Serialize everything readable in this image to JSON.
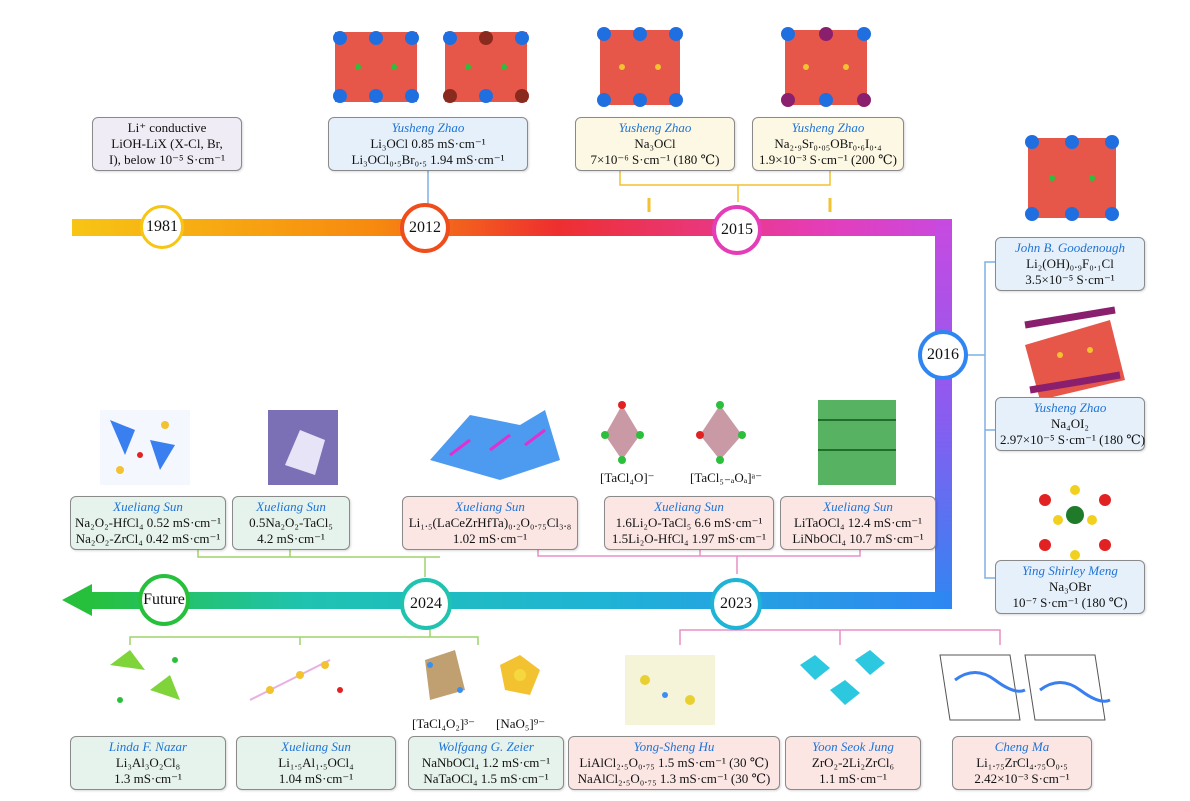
{
  "years": {
    "y1981": "1981",
    "y2012": "2012",
    "y2015": "2015",
    "y2016": "2016",
    "y2023": "2023",
    "y2024": "2024",
    "future": "Future"
  },
  "cards": {
    "c1981": {
      "l1": "Li⁺ conductive",
      "l2": "LiOH-LiX (X-Cl, Br,",
      "l3": "I), below 10⁻⁵ S·cm⁻¹"
    },
    "c2012": {
      "author": "Yusheng Zhao",
      "l1": "Li₃OCl 0.85 mS·cm⁻¹",
      "l2": "Li₃OCl₀.₅Br₀.₅ 1.94 mS·cm⁻¹"
    },
    "c2015a": {
      "author": "Yusheng Zhao",
      "l1": "Na₃OCl",
      "l2": "7×10⁻⁶ S·cm⁻¹ (180 ℃)"
    },
    "c2015b": {
      "author": "Yusheng Zhao",
      "l1": "Na₂.₉Sr₀.₀₅OBr₀.₆I₀.₄",
      "l2": "1.9×10⁻³ S·cm⁻¹ (200 ℃)"
    },
    "c2016a": {
      "author": "John B. Goodenough",
      "l1": "Li₂(OH)₀.₉F₀.₁Cl",
      "l2": "3.5×10⁻⁵ S·cm⁻¹"
    },
    "c2016b": {
      "author": "Yusheng Zhao",
      "l1": "Na₄OI₂",
      "l2": "2.97×10⁻⁵ S·cm⁻¹ (180 ℃)"
    },
    "c2016c": {
      "author": "Ying Shirley Meng",
      "l1": "Na₃OBr",
      "l2": "10⁻⁷ S·cm⁻¹ (180 ℃)"
    },
    "cA": {
      "author": "Xueliang Sun",
      "l1": "Na₂O₂-HfCl₄ 0.52 mS·cm⁻¹",
      "l2": "Na₂O₂-ZrCl₄ 0.42 mS·cm⁻¹"
    },
    "cB": {
      "author": "Xueliang Sun",
      "l1": "0.5Na₂O₂-TaCl₅",
      "l2": "4.2 mS·cm⁻¹"
    },
    "cC": {
      "author": "Xueliang Sun",
      "l1": "Li₁.₅(LaCeZrHfTa)₀.₂O₀.₇₅Cl₃.₈",
      "l2": "1.02 mS·cm⁻¹"
    },
    "cD": {
      "author": "Xueliang Sun",
      "l1": "1.6Li₂O-TaCl₅ 6.6 mS·cm⁻¹",
      "l2": "1.5Li₂O-HfCl₄ 1.97 mS·cm⁻¹"
    },
    "cE": {
      "author": "Xueliang Sun",
      "l1": "LiTaOCl₄ 12.4 mS·cm⁻¹",
      "l2": "LiNbOCl₄ 10.7 mS·cm⁻¹"
    },
    "cF": {
      "author": "Linda F. Nazar",
      "l1": "Li₃Al₃O₂Cl₈",
      "l2": "1.3 mS·cm⁻¹"
    },
    "cG": {
      "author": "Xueliang Sun",
      "l1": "Li₁.₅Al₁.₅OCl₄",
      "l2": "1.04 mS·cm⁻¹"
    },
    "cH": {
      "author": "Wolfgang G. Zeier",
      "l1": "NaNbOCl₄ 1.2 mS·cm⁻¹",
      "l2": "NaTaOCl₄ 1.5 mS·cm⁻¹"
    },
    "cI": {
      "author": "Yong-Sheng Hu",
      "l1": "LiAlCl₂.₅O₀.₇₅ 1.5 mS·cm⁻¹ (30 ℃)",
      "l2": "NaAlCl₂.₅O₀.₇₅ 1.3 mS·cm⁻¹ (30 ℃)"
    },
    "cJ": {
      "author": "Yoon Seok Jung",
      "l1": "ZrO₂-2Li₂ZrCl₆",
      "l2": "1.1 mS·cm⁻¹"
    },
    "cK": {
      "author": "Cheng Ma",
      "l1": "Li₁.₇₅ZrCl₄.₇₅O₀.₅",
      "l2": "2.42×10⁻³ S·cm⁻¹"
    }
  },
  "ion_labels": {
    "tacl4o": "[TaCl₄O]⁻",
    "tacl5": "[TaCl₅₋ₐOₐ]ᵃ⁻",
    "tacl4o2": "[TaCl₄O₂]³⁻",
    "nao5": "[NaO₅]⁹⁻"
  },
  "colors": {
    "arrow_yellow": "#f7c514",
    "arrow_orange": "#f7880f",
    "arrow_red": "#ee2f2f",
    "arrow_magenta": "#e53db7",
    "arrow_purple": "#b349e8",
    "arrow_blue": "#2f86f2",
    "arrow_cyan": "#1fc3d0",
    "arrow_green": "#27c03c",
    "author_blue": "#1e73d6"
  },
  "icons": [
    "crystal-structure-icon",
    "sample-photo-icon",
    "octahedron-icon"
  ]
}
